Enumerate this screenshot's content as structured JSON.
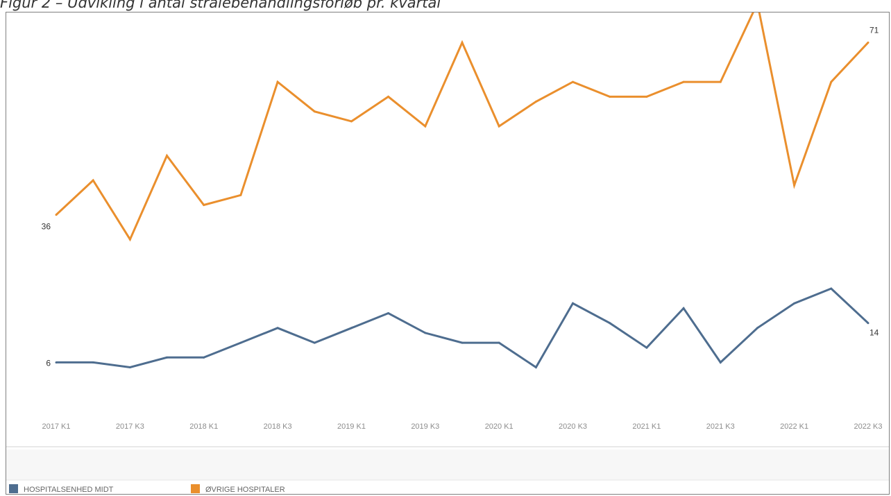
{
  "caption": "Figur 2 – Udvikling i antal strålebehandlingsforløb pr. kvartal",
  "chart_data": {
    "type": "line",
    "title": "",
    "xlabel": "",
    "ylabel": "",
    "x": [
      "2017 K1",
      "2017 K2",
      "2017 K3",
      "2017 K4",
      "2018 K1",
      "2018 K2",
      "2018 K3",
      "2018 K4",
      "2019 K1",
      "2019 K2",
      "2019 K3",
      "2019 K4",
      "2020 K1",
      "2020 K2",
      "2020 K3",
      "2020 K4",
      "2021 K1",
      "2021 K2",
      "2021 K3",
      "2021 K4",
      "2022 K1",
      "2022 K2",
      "2022 K3"
    ],
    "tick_labels": [
      "2017 K1",
      "2017 K3",
      "2018 K1",
      "2018 K3",
      "2019 K1",
      "2019 K3",
      "2020 K1",
      "2020 K3",
      "2021 K1",
      "2021 K3",
      "2022 K1",
      "2022 K3"
    ],
    "ylim": [
      0,
      75
    ],
    "grid": false,
    "legend_position": "bottom-left",
    "series": [
      {
        "name": "HOSPITALSENHED MIDT",
        "color": "#4e6d8f",
        "values": [
          6,
          6,
          5,
          7,
          7,
          10,
          13,
          10,
          13,
          16,
          12,
          10,
          10,
          5,
          18,
          14,
          9,
          17,
          6,
          13,
          18,
          21,
          14
        ],
        "point_labels": [
          {
            "index": 0,
            "text": "6"
          },
          {
            "index": 22,
            "text": "14"
          }
        ]
      },
      {
        "name": "ØVRIGE HOSPITALER",
        "color": "#ea8f2d",
        "values": [
          36,
          43,
          31,
          48,
          38,
          40,
          63,
          57,
          55,
          60,
          54,
          71,
          54,
          59,
          63,
          60,
          60,
          63,
          63,
          79,
          42,
          63,
          71
        ],
        "point_labels": [
          {
            "index": 0,
            "text": "36"
          },
          {
            "index": 22,
            "text": "71"
          }
        ]
      }
    ]
  }
}
